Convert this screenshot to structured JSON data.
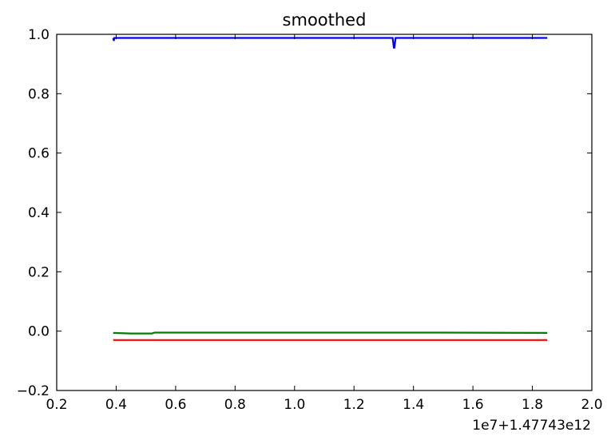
{
  "chart_data": {
    "type": "line",
    "title": "smoothed",
    "xlabel": "",
    "ylabel": "",
    "offset_label": "1e7+1.47743e12",
    "xlim": [
      0.2,
      2.0
    ],
    "ylim": [
      -0.2,
      1.0
    ],
    "x_ticks": [
      0.2,
      0.4,
      0.6,
      0.8,
      1.0,
      1.2,
      1.4,
      1.6,
      1.8,
      2.0
    ],
    "x_tick_labels": [
      "0.2",
      "0.4",
      "0.6",
      "0.8",
      "1.0",
      "1.2",
      "1.4",
      "1.6",
      "1.8",
      "2.0"
    ],
    "y_ticks": [
      -0.2,
      0.0,
      0.2,
      0.4,
      0.6,
      0.8,
      1.0
    ],
    "y_tick_labels": [
      "−0.2",
      "0.0",
      "0.2",
      "0.4",
      "0.6",
      "0.8",
      "1.0"
    ],
    "grid": false,
    "legend": "none",
    "series": [
      {
        "color": "#0000ff",
        "x": [
          0.39,
          0.392,
          0.394,
          1.33,
          1.334,
          1.336,
          1.34,
          1.85
        ],
        "y": [
          0.988,
          0.978,
          0.988,
          0.988,
          0.955,
          0.955,
          0.988,
          0.988
        ]
      },
      {
        "color": "#008000",
        "x": [
          0.39,
          0.45,
          0.52,
          0.53,
          1.0,
          1.5,
          1.85
        ],
        "y": [
          -0.006,
          -0.008,
          -0.008,
          -0.005,
          -0.005,
          -0.005,
          -0.006
        ]
      },
      {
        "color": "#ff0000",
        "x": [
          0.39,
          1.0,
          1.85
        ],
        "y": [
          -0.03,
          -0.03,
          -0.03
        ]
      }
    ]
  }
}
